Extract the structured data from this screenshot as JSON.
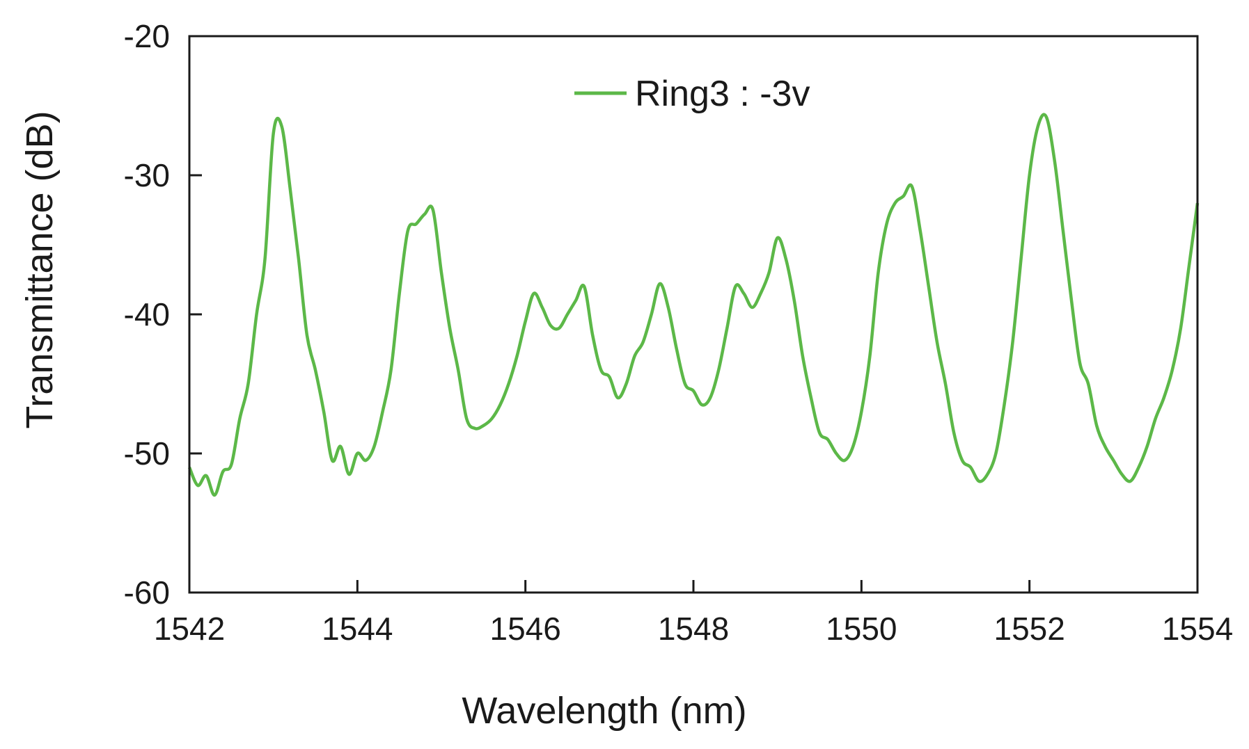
{
  "chart_data": {
    "type": "line",
    "title": "",
    "xlabel": "Wavelength (nm)",
    "ylabel": "Transmittance (dB)",
    "xlim": [
      1542,
      1554
    ],
    "ylim": [
      -60,
      -20
    ],
    "x_ticks": [
      "1542",
      "1544",
      "1546",
      "1548",
      "1550",
      "1552",
      "1554"
    ],
    "y_ticks": [
      "-20",
      "-30",
      "-40",
      "-50",
      "-60"
    ],
    "grid": false,
    "legend_position": "top-center",
    "series": [
      {
        "name": "Ring3 : -3v",
        "color": "#5cb848",
        "x": [
          1542.0,
          1542.1,
          1542.2,
          1542.3,
          1542.4,
          1542.5,
          1542.6,
          1542.7,
          1542.8,
          1542.9,
          1543.0,
          1543.1,
          1543.2,
          1543.3,
          1543.4,
          1543.5,
          1543.6,
          1543.7,
          1543.8,
          1543.9,
          1544.0,
          1544.1,
          1544.2,
          1544.3,
          1544.4,
          1544.5,
          1544.6,
          1544.7,
          1544.8,
          1544.9,
          1545.0,
          1545.1,
          1545.2,
          1545.3,
          1545.4,
          1545.5,
          1545.6,
          1545.7,
          1545.8,
          1545.9,
          1546.0,
          1546.1,
          1546.2,
          1546.3,
          1546.4,
          1546.5,
          1546.6,
          1546.7,
          1546.8,
          1546.9,
          1547.0,
          1547.1,
          1547.2,
          1547.3,
          1547.4,
          1547.5,
          1547.6,
          1547.7,
          1547.8,
          1547.9,
          1548.0,
          1548.1,
          1548.2,
          1548.3,
          1548.4,
          1548.5,
          1548.6,
          1548.7,
          1548.8,
          1548.9,
          1549.0,
          1549.1,
          1549.2,
          1549.3,
          1549.4,
          1549.5,
          1549.6,
          1549.7,
          1549.8,
          1549.9,
          1550.0,
          1550.1,
          1550.2,
          1550.3,
          1550.4,
          1550.5,
          1550.6,
          1550.7,
          1550.8,
          1550.9,
          1551.0,
          1551.1,
          1551.2,
          1551.3,
          1551.4,
          1551.5,
          1551.6,
          1551.7,
          1551.8,
          1551.9,
          1552.0,
          1552.1,
          1552.2,
          1552.3,
          1552.4,
          1552.5,
          1552.6,
          1552.7,
          1552.8,
          1552.9,
          1553.0,
          1553.1,
          1553.2,
          1553.3,
          1553.4,
          1553.5,
          1553.6,
          1553.7,
          1553.8,
          1553.9,
          1554.0
        ],
        "y": [
          -51.0,
          -52.3,
          -51.6,
          -53.0,
          -51.3,
          -50.8,
          -47.5,
          -45.0,
          -40.0,
          -36.0,
          -27.0,
          -26.5,
          -31.0,
          -36.0,
          -41.5,
          -44.0,
          -47.0,
          -50.5,
          -49.5,
          -51.5,
          -50.0,
          -50.5,
          -49.5,
          -47.0,
          -44.0,
          -38.5,
          -34.0,
          -33.5,
          -32.8,
          -32.5,
          -37.0,
          -41.0,
          -44.0,
          -47.5,
          -48.2,
          -48.0,
          -47.5,
          -46.5,
          -45.0,
          -43.0,
          -40.5,
          -38.5,
          -39.5,
          -40.8,
          -41.0,
          -40.0,
          -39.0,
          -38.0,
          -41.5,
          -44.0,
          -44.5,
          -46.0,
          -45.0,
          -43.0,
          -42.0,
          -40.0,
          -37.8,
          -39.5,
          -42.5,
          -45.0,
          -45.5,
          -46.5,
          -46.0,
          -44.0,
          -41.0,
          -38.0,
          -38.5,
          -39.5,
          -38.5,
          -37.0,
          -34.5,
          -36.0,
          -39.0,
          -43.0,
          -46.0,
          -48.5,
          -49.0,
          -50.0,
          -50.5,
          -49.5,
          -47.0,
          -43.0,
          -37.0,
          -33.5,
          -32.0,
          -31.5,
          -30.8,
          -34.0,
          -38.0,
          -42.0,
          -45.0,
          -48.5,
          -50.5,
          -51.0,
          -52.0,
          -51.5,
          -50.0,
          -46.5,
          -42.0,
          -36.0,
          -30.0,
          -26.5,
          -25.8,
          -29.0,
          -34.0,
          -39.0,
          -43.5,
          -45.0,
          -48.0,
          -49.5,
          -50.5,
          -51.5,
          -52.0,
          -51.0,
          -49.5,
          -47.5,
          -46.0,
          -44.0,
          -41.0,
          -36.5,
          -32.0
        ]
      }
    ]
  }
}
